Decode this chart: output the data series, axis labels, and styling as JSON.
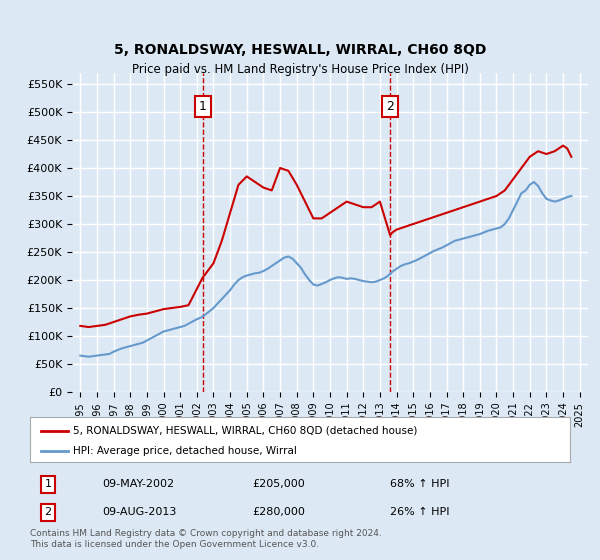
{
  "title": "5, RONALDSWAY, HESWALL, WIRRAL, CH60 8QD",
  "subtitle": "Price paid vs. HM Land Registry's House Price Index (HPI)",
  "ylabel": "",
  "xlabel": "",
  "ylim": [
    0,
    570000
  ],
  "yticks": [
    0,
    50000,
    100000,
    150000,
    200000,
    250000,
    300000,
    350000,
    400000,
    450000,
    500000,
    550000
  ],
  "ytick_labels": [
    "£0",
    "£50K",
    "£100K",
    "£150K",
    "£200K",
    "£250K",
    "£300K",
    "£350K",
    "£400K",
    "£450K",
    "£500K",
    "£550K"
  ],
  "background_color": "#dce9f5",
  "plot_bg_color": "#dce9f5",
  "grid_color": "#ffffff",
  "sale1_date": "09-MAY-2002",
  "sale1_price": 205000,
  "sale1_year": 2002.36,
  "sale1_hpi_pct": "68% ↑ HPI",
  "sale2_date": "09-AUG-2013",
  "sale2_price": 280000,
  "sale2_year": 2013.61,
  "sale2_hpi_pct": "26% ↑ HPI",
  "red_line_color": "#cc0000",
  "blue_line_color": "#6699cc",
  "legend_label_red": "5, RONALDSWAY, HESWALL, WIRRAL, CH60 8QD (detached house)",
  "legend_label_blue": "HPI: Average price, detached house, Wirral",
  "footer": "Contains HM Land Registry data © Crown copyright and database right 2024.\nThis data is licensed under the Open Government Licence v3.0.",
  "hpi_x": [
    1995.0,
    1995.25,
    1995.5,
    1995.75,
    1996.0,
    1996.25,
    1996.5,
    1996.75,
    1997.0,
    1997.25,
    1997.5,
    1997.75,
    1998.0,
    1998.25,
    1998.5,
    1998.75,
    1999.0,
    1999.25,
    1999.5,
    1999.75,
    2000.0,
    2000.25,
    2000.5,
    2000.75,
    2001.0,
    2001.25,
    2001.5,
    2001.75,
    2002.0,
    2002.25,
    2002.5,
    2002.75,
    2003.0,
    2003.25,
    2003.5,
    2003.75,
    2004.0,
    2004.25,
    2004.5,
    2004.75,
    2005.0,
    2005.25,
    2005.5,
    2005.75,
    2006.0,
    2006.25,
    2006.5,
    2006.75,
    2007.0,
    2007.25,
    2007.5,
    2007.75,
    2008.0,
    2008.25,
    2008.5,
    2008.75,
    2009.0,
    2009.25,
    2009.5,
    2009.75,
    2010.0,
    2010.25,
    2010.5,
    2010.75,
    2011.0,
    2011.25,
    2011.5,
    2011.75,
    2012.0,
    2012.25,
    2012.5,
    2012.75,
    2013.0,
    2013.25,
    2013.5,
    2013.75,
    2014.0,
    2014.25,
    2014.5,
    2014.75,
    2015.0,
    2015.25,
    2015.5,
    2015.75,
    2016.0,
    2016.25,
    2016.5,
    2016.75,
    2017.0,
    2017.25,
    2017.5,
    2017.75,
    2018.0,
    2018.25,
    2018.5,
    2018.75,
    2019.0,
    2019.25,
    2019.5,
    2019.75,
    2020.0,
    2020.25,
    2020.5,
    2020.75,
    2021.0,
    2021.25,
    2021.5,
    2021.75,
    2022.0,
    2022.25,
    2022.5,
    2022.75,
    2023.0,
    2023.25,
    2023.5,
    2023.75,
    2024.0,
    2024.25,
    2024.5
  ],
  "hpi_y": [
    65000,
    64000,
    63000,
    64000,
    65000,
    66000,
    67000,
    68000,
    72000,
    75000,
    78000,
    80000,
    82000,
    84000,
    86000,
    88000,
    92000,
    96000,
    100000,
    104000,
    108000,
    110000,
    112000,
    114000,
    116000,
    118000,
    122000,
    126000,
    130000,
    133000,
    138000,
    144000,
    150000,
    158000,
    166000,
    174000,
    182000,
    192000,
    200000,
    205000,
    208000,
    210000,
    212000,
    213000,
    216000,
    220000,
    225000,
    230000,
    235000,
    240000,
    242000,
    238000,
    230000,
    222000,
    210000,
    200000,
    192000,
    190000,
    193000,
    196000,
    200000,
    203000,
    205000,
    204000,
    202000,
    203000,
    202000,
    200000,
    198000,
    197000,
    196000,
    197000,
    200000,
    203000,
    208000,
    215000,
    220000,
    225000,
    228000,
    230000,
    233000,
    236000,
    240000,
    244000,
    248000,
    252000,
    255000,
    258000,
    262000,
    266000,
    270000,
    272000,
    274000,
    276000,
    278000,
    280000,
    282000,
    285000,
    288000,
    290000,
    292000,
    294000,
    300000,
    310000,
    325000,
    340000,
    355000,
    360000,
    370000,
    375000,
    368000,
    355000,
    345000,
    342000,
    340000,
    342000,
    345000,
    348000,
    350000
  ],
  "red_x": [
    1995.0,
    1995.5,
    1996.0,
    1996.5,
    1997.0,
    1997.5,
    1998.0,
    1998.5,
    1999.0,
    1999.5,
    2000.0,
    2000.5,
    2001.0,
    2001.5,
    2002.36,
    2002.5,
    2003.0,
    2003.5,
    2004.0,
    2004.5,
    2005.0,
    2005.5,
    2006.0,
    2006.5,
    2007.0,
    2007.5,
    2008.0,
    2008.5,
    2009.0,
    2009.5,
    2010.0,
    2010.5,
    2011.0,
    2011.5,
    2012.0,
    2012.5,
    2013.0,
    2013.61,
    2013.75,
    2014.0,
    2014.5,
    2015.0,
    2015.5,
    2016.0,
    2016.5,
    2017.0,
    2017.5,
    2018.0,
    2018.5,
    2019.0,
    2019.5,
    2020.0,
    2020.5,
    2021.0,
    2021.5,
    2022.0,
    2022.5,
    2023.0,
    2023.5,
    2024.0,
    2024.25,
    2024.5
  ],
  "red_y": [
    118000,
    116000,
    118000,
    120000,
    125000,
    130000,
    135000,
    138000,
    140000,
    144000,
    148000,
    150000,
    152000,
    155000,
    205000,
    210000,
    230000,
    270000,
    320000,
    370000,
    385000,
    375000,
    365000,
    360000,
    400000,
    395000,
    370000,
    340000,
    310000,
    310000,
    320000,
    330000,
    340000,
    335000,
    330000,
    330000,
    340000,
    280000,
    285000,
    290000,
    295000,
    300000,
    305000,
    310000,
    315000,
    320000,
    325000,
    330000,
    335000,
    340000,
    345000,
    350000,
    360000,
    380000,
    400000,
    420000,
    430000,
    425000,
    430000,
    440000,
    435000,
    420000
  ]
}
